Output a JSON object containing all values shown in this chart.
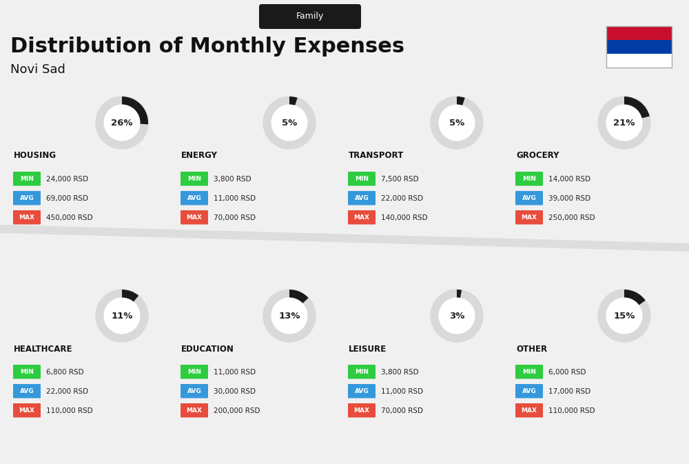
{
  "title": "Distribution of Monthly Expenses",
  "subtitle": "Family",
  "city": "Novi Sad",
  "background_color": "#f0f0f0",
  "categories": [
    {
      "name": "HOUSING",
      "percent": 26,
      "min_val": "24,000 RSD",
      "avg_val": "69,000 RSD",
      "max_val": "450,000 RSD",
      "row": 0,
      "col": 0
    },
    {
      "name": "ENERGY",
      "percent": 5,
      "min_val": "3,800 RSD",
      "avg_val": "11,000 RSD",
      "max_val": "70,000 RSD",
      "row": 0,
      "col": 1
    },
    {
      "name": "TRANSPORT",
      "percent": 5,
      "min_val": "7,500 RSD",
      "avg_val": "22,000 RSD",
      "max_val": "140,000 RSD",
      "row": 0,
      "col": 2
    },
    {
      "name": "GROCERY",
      "percent": 21,
      "min_val": "14,000 RSD",
      "avg_val": "39,000 RSD",
      "max_val": "250,000 RSD",
      "row": 0,
      "col": 3
    },
    {
      "name": "HEALTHCARE",
      "percent": 11,
      "min_val": "6,800 RSD",
      "avg_val": "22,000 RSD",
      "max_val": "110,000 RSD",
      "row": 1,
      "col": 0
    },
    {
      "name": "EDUCATION",
      "percent": 13,
      "min_val": "11,000 RSD",
      "avg_val": "30,000 RSD",
      "max_val": "200,000 RSD",
      "row": 1,
      "col": 1
    },
    {
      "name": "LEISURE",
      "percent": 3,
      "min_val": "3,800 RSD",
      "avg_val": "11,000 RSD",
      "max_val": "70,000 RSD",
      "row": 1,
      "col": 2
    },
    {
      "name": "OTHER",
      "percent": 15,
      "min_val": "6,000 RSD",
      "avg_val": "17,000 RSD",
      "max_val": "110,000 RSD",
      "row": 1,
      "col": 3
    }
  ],
  "min_color": "#2ecc40",
  "avg_color": "#3498db",
  "max_color": "#e74c3c",
  "label_text_color": "#ffffff",
  "category_name_color": "#111111",
  "value_text_color": "#222222",
  "circle_bg_color": "#d9d9d9",
  "circle_fill_color": "#1a1a1a",
  "title_color": "#111111",
  "subtitle_bg_color": "#1a1a1a",
  "subtitle_text_color": "#ffffff"
}
